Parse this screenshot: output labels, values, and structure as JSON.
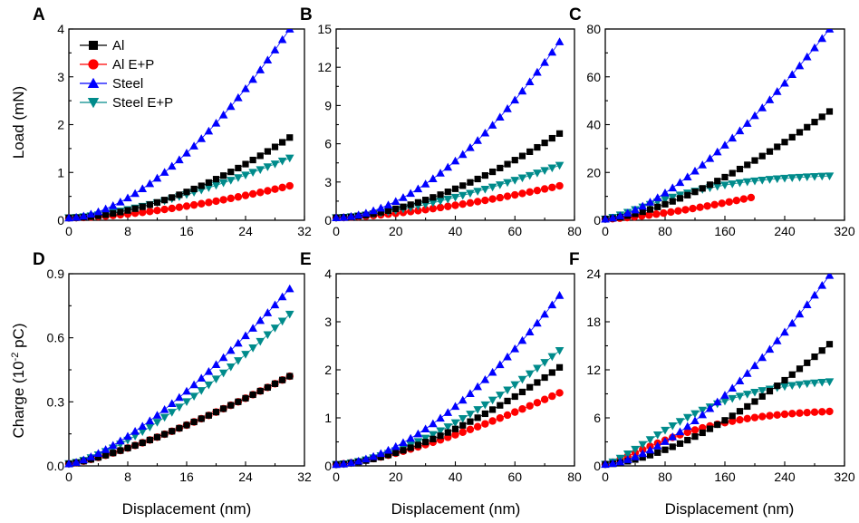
{
  "figure": {
    "y_axis_title_top": "Load (mN)",
    "y_axis_title_bottom_prefix": "Charge (10",
    "y_axis_title_bottom_exp": "-2",
    "y_axis_title_bottom_suffix": " pC)",
    "x_axis_title": "Displacement (nm)"
  },
  "legend": [
    {
      "label": "Al",
      "color": "#000000",
      "marker": "square"
    },
    {
      "label": "Al E+P",
      "color": "#ff0000",
      "marker": "circle"
    },
    {
      "label": "Steel",
      "color": "#0000ff",
      "marker": "triangle-up"
    },
    {
      "label": "Steel E+P",
      "color": "#008b8b",
      "marker": "triangle-down"
    }
  ],
  "chart_data": [
    {
      "panel": "A",
      "type": "scatter",
      "xlabel": "",
      "ylabel": "Load (mN)",
      "xlim": [
        0,
        32
      ],
      "ylim": [
        0,
        4
      ],
      "xticks": [
        0,
        8,
        16,
        24,
        32
      ],
      "yticks": [
        0,
        1,
        2,
        3,
        4
      ],
      "series": [
        {
          "name": "Al",
          "x": [
            0,
            30
          ],
          "y": [
            0,
            1.73
          ],
          "n": 31,
          "p": 1.8,
          "y0": 0.05
        },
        {
          "name": "Al E+P",
          "x": [
            0,
            30
          ],
          "y": [
            0,
            0.72
          ],
          "n": 31,
          "p": 1.6,
          "y0": 0.05
        },
        {
          "name": "Steel",
          "x": [
            0,
            30
          ],
          "y": [
            0,
            4.0
          ],
          "n": 31,
          "p": 1.7,
          "y0": 0.05
        },
        {
          "name": "Steel E+P",
          "x": [
            0,
            30
          ],
          "y": [
            0,
            1.3
          ],
          "n": 31,
          "p": 1.5,
          "y0": 0.05
        }
      ]
    },
    {
      "panel": "B",
      "type": "scatter",
      "xlabel": "",
      "ylabel": "",
      "xlim": [
        0,
        80
      ],
      "ylim": [
        0,
        15
      ],
      "xticks": [
        0,
        20,
        40,
        60,
        80
      ],
      "yticks": [
        0,
        3,
        6,
        9,
        12,
        15
      ],
      "series": [
        {
          "name": "Al",
          "x": [
            0,
            75
          ],
          "y": [
            0,
            6.8
          ],
          "n": 31,
          "p": 1.7,
          "y0": 0.2
        },
        {
          "name": "Al E+P",
          "x": [
            0,
            75
          ],
          "y": [
            0,
            2.7
          ],
          "n": 31,
          "p": 1.5,
          "y0": 0.2
        },
        {
          "name": "Steel",
          "x": [
            0,
            75
          ],
          "y": [
            0,
            14.0
          ],
          "n": 31,
          "p": 1.8,
          "y0": 0.2
        },
        {
          "name": "Steel E+P",
          "x": [
            0,
            75
          ],
          "y": [
            0,
            4.3
          ],
          "n": 31,
          "p": 1.5,
          "y0": 0.2
        }
      ]
    },
    {
      "panel": "C",
      "type": "scatter",
      "xlabel": "",
      "ylabel": "",
      "xlim": [
        0,
        320
      ],
      "ylim": [
        0,
        80
      ],
      "xticks": [
        0,
        80,
        160,
        240,
        320
      ],
      "yticks": [
        0,
        20,
        40,
        60,
        80
      ],
      "series": [
        {
          "name": "Al",
          "x": [
            0,
            300
          ],
          "y": [
            0,
            45.5
          ],
          "n": 31,
          "p": 1.5,
          "y0": 0.5
        },
        {
          "name": "Al E+P",
          "x": [
            0,
            195
          ],
          "y": [
            0,
            9.5
          ],
          "n": 21,
          "p": 1.4,
          "y0": 0.5
        },
        {
          "name": "Steel",
          "x": [
            0,
            300
          ],
          "y": [
            0,
            80.0
          ],
          "n": 31,
          "p": 1.5,
          "y0": 0.5
        },
        {
          "name": "Steel E+P",
          "x": [
            0,
            300
          ],
          "y": [
            0,
            18.5
          ],
          "n": 31,
          "p": 1.3,
          "y0": 0.5,
          "mode": "saturate"
        }
      ]
    },
    {
      "panel": "D",
      "type": "scatter",
      "xlabel": "Displacement (nm)",
      "ylabel": "Charge (10^-2 pC)",
      "xlim": [
        0,
        32
      ],
      "ylim": [
        0,
        0.9
      ],
      "xticks": [
        0,
        8,
        16,
        24,
        32
      ],
      "yticks": [
        0,
        0.3,
        0.6,
        0.9
      ],
      "ytick_labels": [
        "0.0",
        "0.3",
        "0.6",
        "0.9"
      ],
      "series": [
        {
          "name": "Al",
          "x": [
            0,
            30
          ],
          "y": [
            0,
            0.42
          ],
          "n": 31,
          "p": 1.3,
          "y0": 0.01
        },
        {
          "name": "Al E+P",
          "x": [
            0,
            30
          ],
          "y": [
            0,
            0.42
          ],
          "n": 31,
          "p": 1.3,
          "y0": 0.01
        },
        {
          "name": "Steel",
          "x": [
            0,
            30
          ],
          "y": [
            0,
            0.83
          ],
          "n": 31,
          "p": 1.4,
          "y0": 0.01
        },
        {
          "name": "Steel E+P",
          "x": [
            0,
            30
          ],
          "y": [
            0,
            0.71
          ],
          "n": 31,
          "p": 1.4,
          "y0": 0.01
        }
      ]
    },
    {
      "panel": "E",
      "type": "scatter",
      "xlabel": "Displacement (nm)",
      "ylabel": "",
      "xlim": [
        0,
        80
      ],
      "ylim": [
        0,
        4
      ],
      "xticks": [
        0,
        20,
        40,
        60,
        80
      ],
      "yticks": [
        0,
        1,
        2,
        3,
        4
      ],
      "series": [
        {
          "name": "Al",
          "x": [
            0,
            75
          ],
          "y": [
            0,
            2.05
          ],
          "n": 31,
          "p": 1.6,
          "y0": 0.03
        },
        {
          "name": "Al E+P",
          "x": [
            0,
            75
          ],
          "y": [
            0,
            1.52
          ],
          "n": 31,
          "p": 1.4,
          "y0": 0.03
        },
        {
          "name": "Steel",
          "x": [
            0,
            75
          ],
          "y": [
            0,
            3.55
          ],
          "n": 31,
          "p": 1.7,
          "y0": 0.03
        },
        {
          "name": "Steel E+P",
          "x": [
            0,
            75
          ],
          "y": [
            0,
            2.4
          ],
          "n": 31,
          "p": 1.6,
          "y0": 0.03
        }
      ]
    },
    {
      "panel": "F",
      "type": "scatter",
      "xlabel": "Displacement (nm)",
      "ylabel": "",
      "xlim": [
        0,
        320
      ],
      "ylim": [
        0,
        24
      ],
      "xticks": [
        0,
        80,
        160,
        240,
        320
      ],
      "yticks": [
        0,
        6,
        12,
        18,
        24
      ],
      "series": [
        {
          "name": "Al",
          "x": [
            0,
            300
          ],
          "y": [
            0,
            15.2
          ],
          "n": 31,
          "p": 1.6,
          "y0": 0.2
        },
        {
          "name": "Al E+P",
          "x": [
            0,
            300
          ],
          "y": [
            0,
            6.8
          ],
          "n": 31,
          "p": 1.3,
          "y0": 0.2,
          "mode": "saturate"
        },
        {
          "name": "Steel",
          "x": [
            0,
            300
          ],
          "y": [
            0,
            23.8
          ],
          "n": 31,
          "p": 1.6,
          "y0": 0.2
        },
        {
          "name": "Steel E+P",
          "x": [
            0,
            300
          ],
          "y": [
            0,
            10.5
          ],
          "n": 31,
          "p": 1.4,
          "y0": 0.2,
          "mode": "saturate"
        }
      ]
    }
  ]
}
